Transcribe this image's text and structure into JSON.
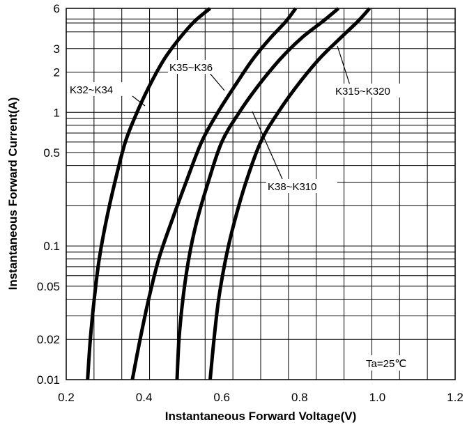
{
  "chart_data": {
    "type": "line",
    "xlabel": "Instantaneous Forward Voltage(V)",
    "ylabel": "Instantaneous Forward Current(A)",
    "xlim": [
      0.2,
      1.2
    ],
    "ylim": [
      0.01,
      6
    ],
    "yscale": "log",
    "grid": true,
    "x_ticks": [
      "0.2",
      "0.4",
      "0.6",
      "0.8",
      "1.0",
      "1.2"
    ],
    "y_ticks": [
      "0.01",
      "0.02",
      "0.05",
      "0.1",
      "0.5",
      "1",
      "2",
      "3",
      "6"
    ],
    "annotation": "Ta=25℃",
    "series": [
      {
        "name": "K32~K34",
        "x": [
          0.255,
          0.262,
          0.272,
          0.285,
          0.302,
          0.325,
          0.352,
          0.382,
          0.415,
          0.452,
          0.492,
          0.53,
          0.57
        ],
        "y": [
          0.01,
          0.02,
          0.04,
          0.08,
          0.15,
          0.3,
          0.6,
          1.0,
          1.6,
          2.5,
          3.6,
          4.8,
          6.0
        ]
      },
      {
        "name": "K35~K36",
        "x": [
          0.37,
          0.39,
          0.412,
          0.438,
          0.47,
          0.508,
          0.548,
          0.59,
          0.635,
          0.68,
          0.725,
          0.765,
          0.79
        ],
        "y": [
          0.01,
          0.02,
          0.04,
          0.08,
          0.15,
          0.3,
          0.6,
          1.0,
          1.6,
          2.5,
          3.6,
          4.8,
          6.0
        ]
      },
      {
        "name": "K38~K310",
        "x": [
          0.485,
          0.49,
          0.5,
          0.515,
          0.535,
          0.565,
          0.6,
          0.645,
          0.695,
          0.75,
          0.805,
          0.86,
          0.9
        ],
        "y": [
          0.01,
          0.02,
          0.04,
          0.08,
          0.15,
          0.3,
          0.6,
          1.0,
          1.6,
          2.5,
          3.6,
          4.8,
          6.0
        ]
      },
      {
        "name": "K315~K320",
        "x": [
          0.57,
          0.58,
          0.592,
          0.61,
          0.632,
          0.662,
          0.7,
          0.745,
          0.795,
          0.85,
          0.905,
          0.95,
          0.98
        ],
        "y": [
          0.01,
          0.02,
          0.04,
          0.08,
          0.15,
          0.3,
          0.6,
          1.0,
          1.6,
          2.5,
          3.6,
          4.8,
          6.0
        ]
      }
    ]
  }
}
